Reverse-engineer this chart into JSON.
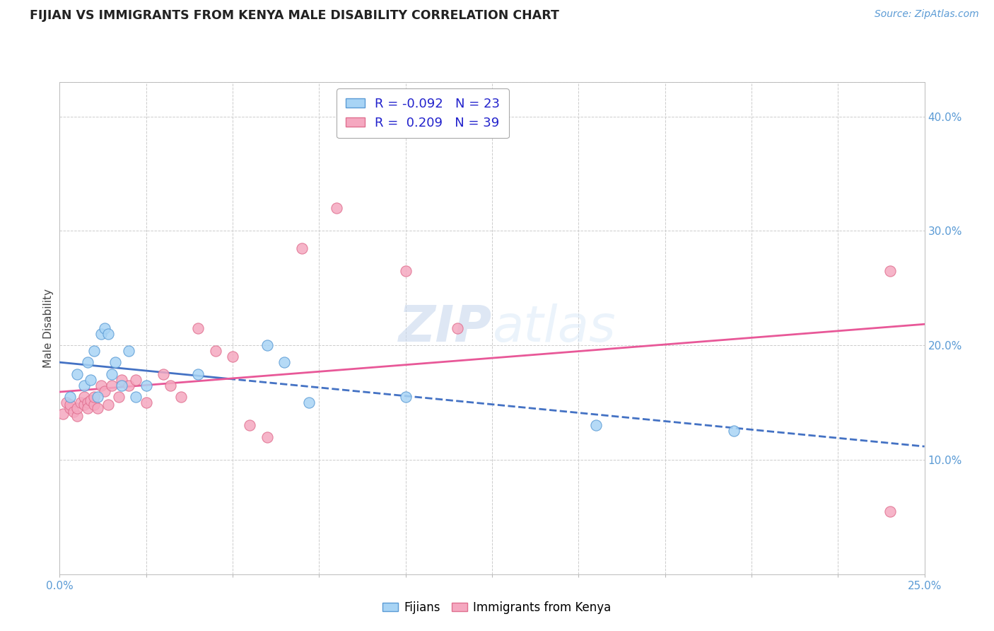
{
  "title": "FIJIAN VS IMMIGRANTS FROM KENYA MALE DISABILITY CORRELATION CHART",
  "source_text": "Source: ZipAtlas.com",
  "ylabel": "Male Disability",
  "xmin": 0.0,
  "xmax": 0.25,
  "ymin": 0.0,
  "ymax": 0.43,
  "yticks": [
    0.1,
    0.2,
    0.3,
    0.4
  ],
  "ytick_labels": [
    "10.0%",
    "20.0%",
    "30.0%",
    "40.0%"
  ],
  "fijians_color": "#a8d4f5",
  "kenya_color": "#f5a8c0",
  "fijians_edge_color": "#5b9bd5",
  "kenya_edge_color": "#e07090",
  "fijians_line_color": "#4472C4",
  "kenya_line_color": "#E85898",
  "watermark_color": "#d0dff0",
  "legend_text_color": "#2222cc",
  "tick_color": "#5b9bd5",
  "fijians_x": [
    0.003,
    0.005,
    0.007,
    0.008,
    0.009,
    0.01,
    0.011,
    0.012,
    0.013,
    0.014,
    0.015,
    0.016,
    0.018,
    0.02,
    0.022,
    0.025,
    0.04,
    0.06,
    0.065,
    0.072,
    0.1,
    0.155,
    0.195
  ],
  "fijians_y": [
    0.155,
    0.175,
    0.165,
    0.185,
    0.17,
    0.195,
    0.155,
    0.21,
    0.215,
    0.21,
    0.175,
    0.185,
    0.165,
    0.195,
    0.155,
    0.165,
    0.175,
    0.2,
    0.185,
    0.15,
    0.155,
    0.13,
    0.125
  ],
  "kenya_x": [
    0.001,
    0.002,
    0.003,
    0.003,
    0.004,
    0.005,
    0.005,
    0.006,
    0.007,
    0.007,
    0.008,
    0.008,
    0.009,
    0.01,
    0.01,
    0.011,
    0.012,
    0.013,
    0.014,
    0.015,
    0.017,
    0.018,
    0.02,
    0.022,
    0.025,
    0.03,
    0.032,
    0.035,
    0.04,
    0.045,
    0.05,
    0.055,
    0.06,
    0.07,
    0.08,
    0.1,
    0.115,
    0.24,
    0.24
  ],
  "kenya_y": [
    0.14,
    0.15,
    0.145,
    0.148,
    0.142,
    0.138,
    0.145,
    0.15,
    0.148,
    0.155,
    0.15,
    0.145,
    0.152,
    0.148,
    0.155,
    0.145,
    0.165,
    0.16,
    0.148,
    0.165,
    0.155,
    0.17,
    0.165,
    0.17,
    0.15,
    0.175,
    0.165,
    0.155,
    0.215,
    0.195,
    0.19,
    0.13,
    0.12,
    0.285,
    0.32,
    0.265,
    0.215,
    0.265,
    0.055
  ]
}
